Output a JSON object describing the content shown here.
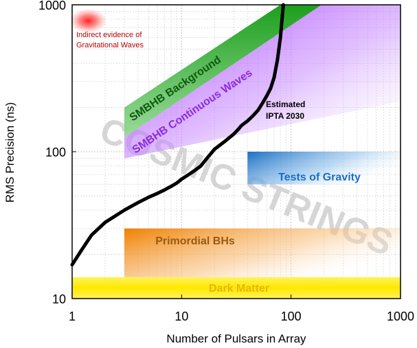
{
  "chart_data": {
    "type": "line",
    "xlabel": "Number of Pulsars in Array",
    "ylabel": "RMS Precision (ns)",
    "xscale": "log",
    "yscale": "log",
    "xlim": [
      1,
      1000
    ],
    "ylim": [
      10,
      1000
    ],
    "x_ticks": [
      {
        "value": 1,
        "label": "1"
      },
      {
        "value": 10,
        "label": "10"
      },
      {
        "value": 100,
        "label": "100"
      },
      {
        "value": 1000,
        "label": "1000"
      }
    ],
    "y_ticks": [
      {
        "value": 10,
        "label": "10"
      },
      {
        "value": 100,
        "label": "100"
      },
      {
        "value": 1000,
        "label": "1000"
      }
    ],
    "grid": true,
    "series": [
      {
        "name": "Estimated IPTA 2030",
        "color": "#000000",
        "x": [
          1,
          1.2,
          1.5,
          2,
          3,
          4,
          5,
          6,
          7,
          8,
          9,
          10,
          11,
          12,
          13,
          14,
          15,
          17,
          20,
          25,
          30,
          33,
          35,
          40,
          45,
          50,
          55,
          60,
          65,
          70,
          75,
          80,
          85
        ],
        "y": [
          17,
          21,
          27,
          33,
          40,
          45,
          49,
          52,
          55,
          58,
          61,
          65,
          68,
          71,
          74,
          77,
          80,
          90,
          104,
          118,
          132,
          142,
          150,
          162,
          176,
          192,
          215,
          240,
          270,
          320,
          420,
          600,
          1000
        ]
      }
    ],
    "regions": [
      {
        "label": "SMBHB Background",
        "color": "#1a9e1a",
        "x_start": 3,
        "x_end": 190,
        "lower_left": 125,
        "upper_left": 200,
        "lower_right": 1000,
        "upper_right": 1000
      },
      {
        "label": "SMBHB Continuous Waves",
        "color": "#9b30ff",
        "x_start": 3,
        "x_end": 1000,
        "lower_left": 90,
        "upper_left": 125,
        "lower_right": 1000,
        "upper_right": 1000
      },
      {
        "label": "Tests of Gravity",
        "color": "#1a6fc4",
        "x_range": [
          40,
          1000
        ],
        "y_range": [
          60,
          100
        ]
      },
      {
        "label": "Primordial BHs",
        "color": "#f08000",
        "x_range": [
          3,
          1000
        ],
        "y_range": [
          14,
          30
        ]
      },
      {
        "label": "Dark Matter",
        "color": "#ffee00",
        "x_range": [
          1,
          1000
        ],
        "y_range": [
          10,
          14
        ]
      },
      {
        "label": "COSMIC STRINGS",
        "color": "#c8c8c8"
      }
    ],
    "annotations": [
      {
        "text": "Indirect evidence of",
        "color": "#b80000"
      },
      {
        "text": "Gravitational Waves",
        "color": "#b80000"
      },
      {
        "text": "Estimated",
        "color": "#000000"
      },
      {
        "text": "IPTA 2030",
        "color": "#000000"
      }
    ],
    "indirect_evidence_marker": {
      "x": 1.4,
      "y": 830,
      "color": "#ff2a2a"
    }
  }
}
